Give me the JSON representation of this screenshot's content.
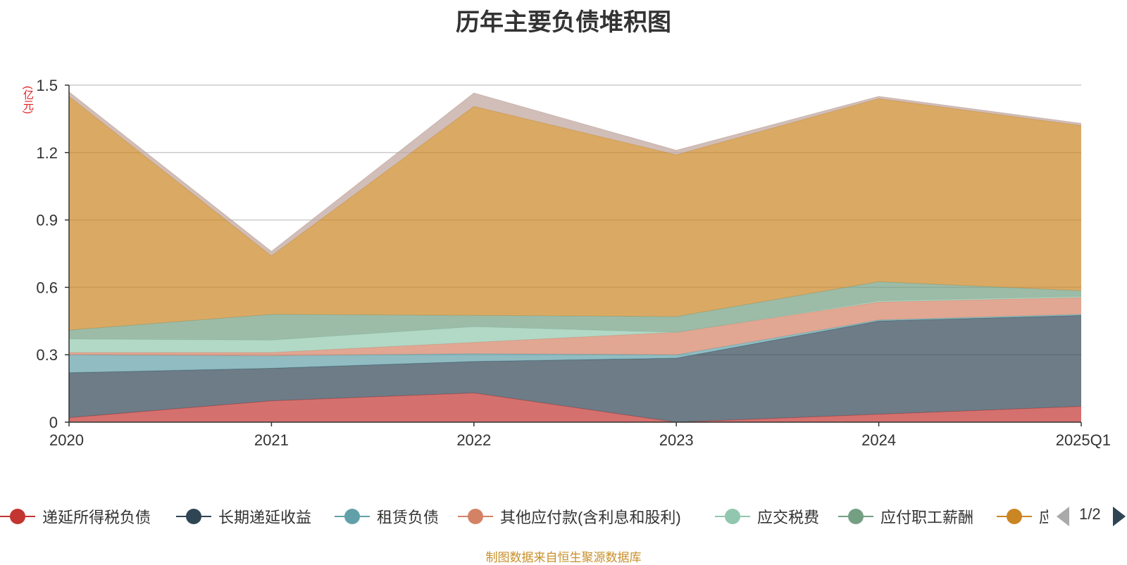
{
  "title": "历年主要负债堆积图",
  "source_note": "制图数据来自恒生聚源数据库",
  "pager": {
    "text": "1/2"
  },
  "chart_data": {
    "type": "area",
    "stacked": true,
    "title": "历年主要负债堆积图",
    "unit": "(亿元)",
    "categories": [
      "2020",
      "2021",
      "2022",
      "2023",
      "2024",
      "2025Q1"
    ],
    "ylim": [
      0,
      1.5
    ],
    "yticks": [
      "0",
      "0.3",
      "0.6",
      "0.9",
      "1.2",
      "1.5"
    ],
    "grid": true,
    "legend_position": "bottom",
    "series": [
      {
        "name": "递延所得税负债",
        "color": "#c23531",
        "values": [
          0.02,
          0.095,
          0.13,
          0.0,
          0.035,
          0.07
        ]
      },
      {
        "name": "长期递延收益",
        "color": "#2f4554",
        "values": [
          0.2,
          0.145,
          0.14,
          0.285,
          0.415,
          0.405
        ]
      },
      {
        "name": "租赁负债",
        "color": "#61a0a8",
        "values": [
          0.08,
          0.055,
          0.035,
          0.015,
          0.005,
          0.005
        ]
      },
      {
        "name": "其他应付款(含利息和股利)",
        "color": "#d48265",
        "values": [
          0.01,
          0.015,
          0.05,
          0.1,
          0.08,
          0.075
        ]
      },
      {
        "name": "应交税费",
        "color": "#91c7ae",
        "values": [
          0.06,
          0.055,
          0.07,
          0.0,
          0.005,
          0.005
        ]
      },
      {
        "name": "应付职工薪酬",
        "color": "#749f83",
        "values": [
          0.04,
          0.115,
          0.05,
          0.07,
          0.085,
          0.025
        ]
      },
      {
        "name": "应付账款",
        "color": "#ca8622",
        "values": [
          1.04,
          0.26,
          0.93,
          0.72,
          0.815,
          0.735
        ]
      },
      {
        "name": "",
        "color": "#bda29a",
        "values": [
          0.02,
          0.02,
          0.06,
          0.02,
          0.01,
          0.01
        ]
      }
    ]
  }
}
